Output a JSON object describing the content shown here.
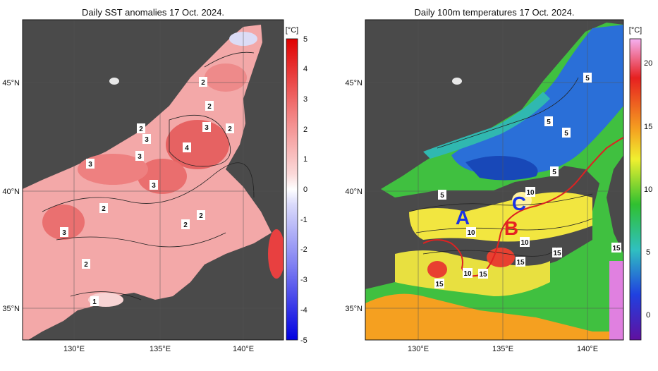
{
  "left_panel": {
    "title": "Daily SST anomalies 17 Oct. 2024.",
    "unit": "[°C]",
    "colorbar_ticks": [
      "5",
      "4",
      "3",
      "2",
      "1",
      "0",
      "-1",
      "-2",
      "-3",
      "-4",
      "-5"
    ],
    "contour_labels": [
      "2",
      "2",
      "2",
      "3",
      "2",
      "3",
      "3",
      "4",
      "3",
      "3",
      "2",
      "2",
      "2",
      "3",
      "2",
      "1"
    ]
  },
  "right_panel": {
    "title": "Daily 100m temperatures 17 Oct. 2024.",
    "unit": "[°C]",
    "colorbar_ticks": [
      "20",
      "15",
      "10",
      "5",
      "0"
    ],
    "contour_labels": [
      "5",
      "5",
      "5",
      "5",
      "5",
      "10",
      "10",
      "10",
      "10",
      "15",
      "15",
      "15",
      "15",
      "15"
    ],
    "zone_labels": [
      "A",
      "B",
      "C"
    ],
    "zone_label_colors": [
      "#1a33e6",
      "#e62222",
      "#1a33e6"
    ]
  },
  "axes": {
    "lat_ticks": [
      "45°N",
      "40°N",
      "35°N"
    ],
    "lon_ticks": [
      "130°E",
      "135°E",
      "140°E"
    ]
  },
  "colors": {
    "land": "#4a4a4a",
    "anomaly_high": "#e03a3a",
    "anomaly_low": "#3a3ae0",
    "front_line": "#dd2222"
  }
}
